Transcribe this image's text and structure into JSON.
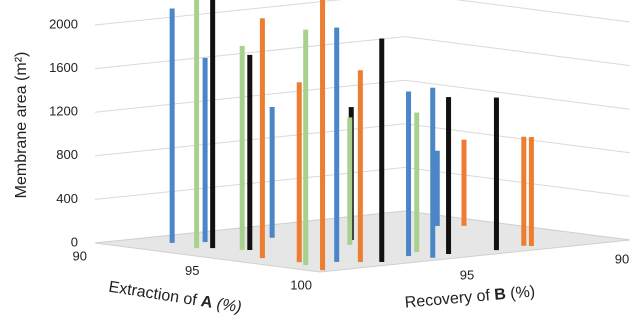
{
  "chart_data": {
    "type": "bar3d",
    "ylabel": "Membrane area (m²)",
    "xlabel_parts": [
      "Extraction of",
      "A",
      "(%)"
    ],
    "x2label_parts": [
      "Recovery of",
      "B",
      "(%)"
    ],
    "zlim": [
      0,
      2000
    ],
    "zticks": [
      0,
      400,
      800,
      1200,
      1600,
      2000
    ],
    "xlim": [
      90,
      100
    ],
    "xticks": [
      90,
      95,
      100
    ],
    "x2lim": [
      100,
      90
    ],
    "x2ticks": [
      95,
      90
    ],
    "grid": true,
    "series": [
      {
        "color": "#4a86c8",
        "extraction": [
          91.5,
          92,
          92.5,
          98.4,
          98.7,
          99.5,
          93.5
        ],
        "recovery": [
          98.6,
          97.9,
          96.1,
          98.3,
          96.2,
          96,
          91.5
        ],
        "values": [
          2150,
          1690,
          1200,
          2150,
          1510,
          1560,
          690
        ]
      },
      {
        "color": "#a9d18e",
        "extraction": [
          93,
          94.2,
          98.4,
          95.4,
          98.1
        ],
        "recovery": [
          98.9,
          98.3,
          99.3,
          95.7,
          95.5
        ],
        "values": [
          2280,
          1870,
          2160,
          1170,
          1280
        ]
      },
      {
        "color": "#111111",
        "extraction": [
          93.3,
          94.4,
          94.5,
          99.3,
          99.1,
          99.3
        ],
        "recovery": [
          98.6,
          98.2,
          95,
          97.5,
          95.2,
          93.8
        ],
        "values": [
          2280,
          1790,
          1220,
          2050,
          1440,
          1400
        ]
      },
      {
        "color": "#ed7d31",
        "extraction": [
          96.2,
          97.7,
          99.7,
          98.9,
          94,
          99,
          99.2
        ],
        "recovery": [
          99.1,
          99,
          99.7,
          97.9,
          91,
          92.7,
          92.6
        ],
        "values": [
          2200,
          1650,
          2480,
          1760,
          790,
          1000,
          1000
        ]
      }
    ]
  }
}
